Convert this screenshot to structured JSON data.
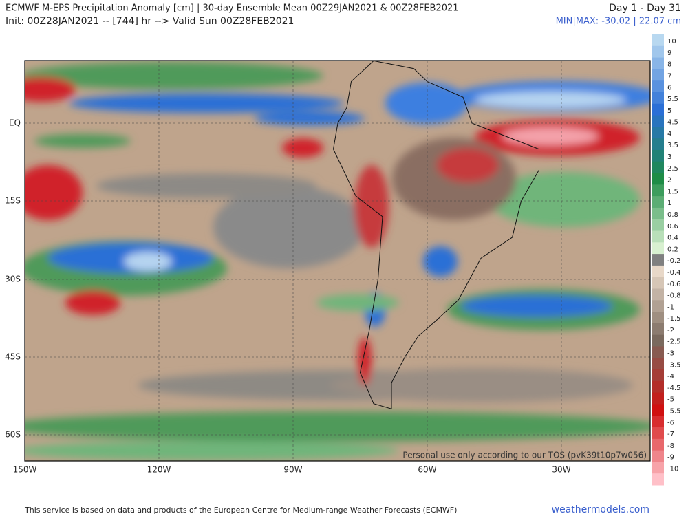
{
  "header": {
    "title": "ECMWF M-EPS Precipitation Anomaly [cm] | 30-day Ensemble Mean 00Z29JAN2021 & 00Z28FEB2021",
    "subtitle": "Init: 00Z28JAN2021 -- [744] hr --> Valid Sun 00Z28FEB2021",
    "period": "Day 1 - Day 31",
    "range": "MIN|MAX: -30.02 | 22.07 cm"
  },
  "map": {
    "lon_labels": [
      "150W",
      "120W",
      "90W",
      "60W",
      "30W"
    ],
    "lat_labels": [
      "EQ",
      "15S",
      "30S",
      "45S",
      "60S"
    ],
    "watermark": "Personal use only according to our TOS (pvK39t10p7w056)"
  },
  "colorbar": {
    "labels": [
      "10",
      "9",
      "8",
      "7",
      "6",
      "5.5",
      "5",
      "4.5",
      "4",
      "3.5",
      "3",
      "2.5",
      "2",
      "1.5",
      "1",
      "0.8",
      "0.6",
      "0.4",
      "0.2",
      "-0.2",
      "-0.4",
      "-0.6",
      "-0.8",
      "-1",
      "-1.5",
      "-2",
      "-2.5",
      "-3",
      "-3.5",
      "-4",
      "-4.5",
      "-5",
      "-5.5",
      "-6",
      "-7",
      "-8",
      "-9",
      "-10"
    ]
  },
  "footer": {
    "note": "This service is based on data and products of the European Centre for Medium-range Weather Forecasts (ECMWF)",
    "site": "weathermodels.com"
  }
}
